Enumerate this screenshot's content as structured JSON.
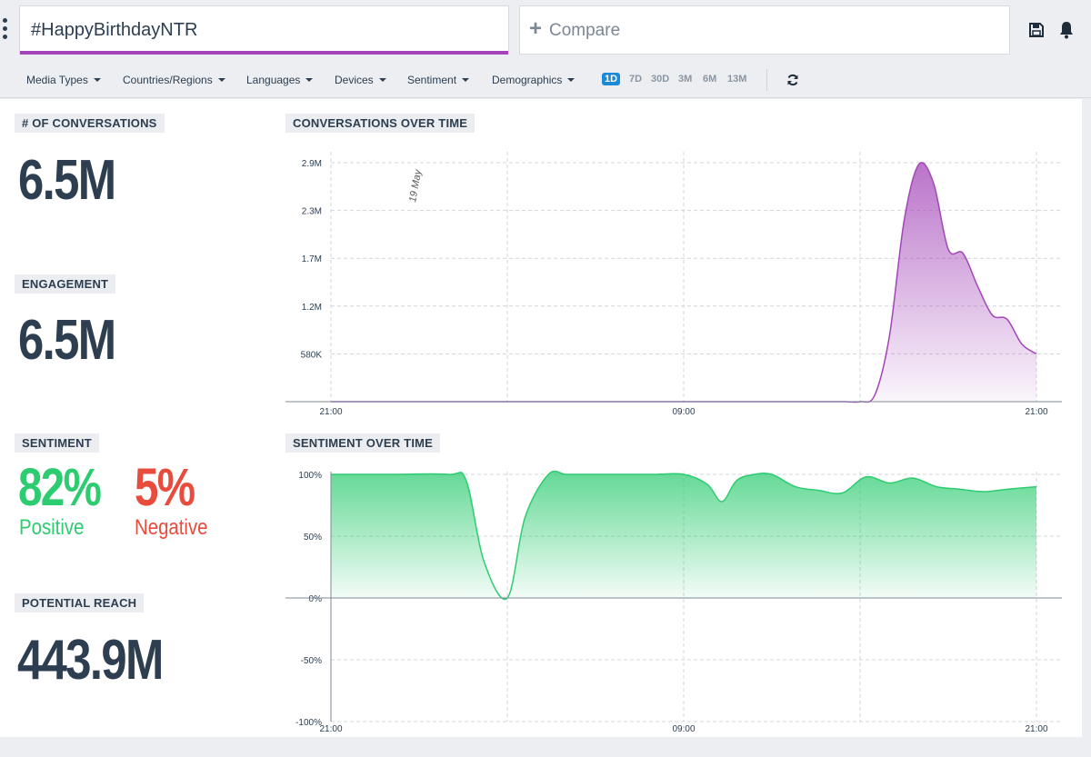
{
  "search": {
    "query": "#HappyBirthdayNTR"
  },
  "compare": {
    "label": "Compare"
  },
  "filters": [
    "Media Types",
    "Countries/Regions",
    "Languages",
    "Devices",
    "Sentiment",
    "Demographics"
  ],
  "ranges": [
    {
      "label": "1D",
      "active": true
    },
    {
      "label": "7D",
      "active": false
    },
    {
      "label": "30D",
      "active": false
    },
    {
      "label": "3M",
      "active": false
    },
    {
      "label": "6M",
      "active": false
    },
    {
      "label": "13M",
      "active": false
    }
  ],
  "metrics": {
    "conversations": {
      "label": "# OF CONVERSATIONS",
      "value": "6.5M"
    },
    "engagement": {
      "label": "ENGAGEMENT",
      "value": "6.5M"
    },
    "sentiment": {
      "label": "SENTIMENT",
      "positive_value": "82%",
      "positive_label": "Positive",
      "negative_value": "5%",
      "negative_label": "Negative"
    },
    "reach": {
      "label": "POTENTIAL REACH",
      "value": "443.9M"
    }
  },
  "colors": {
    "accent_purple": "#a345b8",
    "positive": "#2ecc71",
    "negative": "#e74c3c",
    "active_range": "#1a8ad6"
  },
  "chart_data": [
    {
      "type": "area",
      "title": "CONVERSATIONS OVER TIME",
      "annotation": "19 May",
      "x_ticks": [
        "21:00",
        "09:00",
        "21:00"
      ],
      "y_ticks": [
        "580K",
        "1.2M",
        "1.7M",
        "2.3M",
        "2.9M"
      ],
      "y_tick_values": [
        580000,
        1160000,
        1740000,
        2320000,
        2900000
      ],
      "ylim": [
        0,
        2900000
      ],
      "x_hours": [
        0,
        2,
        4,
        6,
        8,
        10,
        12,
        14,
        16,
        16.5,
        17,
        17.5,
        18,
        18.5,
        19,
        19.5,
        20,
        20.5,
        21,
        21.5,
        22,
        22.5,
        23,
        23.5,
        24
      ],
      "values": [
        0,
        0,
        0,
        0,
        0,
        0,
        0,
        0,
        0,
        0,
        0,
        0,
        0,
        80000,
        800000,
        2200000,
        2880000,
        2650000,
        1850000,
        1800000,
        1400000,
        1050000,
        1000000,
        700000,
        580000
      ],
      "color": "#a345b8",
      "grid": true
    },
    {
      "type": "area",
      "title": "SENTIMENT OVER TIME",
      "x_ticks": [
        "21:00",
        "09:00",
        "21:00"
      ],
      "y_ticks": [
        "100%",
        "50%",
        "0%",
        "-50%",
        "-100%"
      ],
      "y_tick_values": [
        100,
        50,
        0,
        -50,
        -100
      ],
      "ylim": [
        -100,
        100
      ],
      "x_hours": [
        0,
        2,
        4,
        4.6,
        5.2,
        6,
        6.6,
        7.4,
        8,
        8.8,
        10,
        11,
        12,
        12.8,
        13.3,
        13.8,
        14.4,
        15,
        15.8,
        16.6,
        17.4,
        18.2,
        19,
        19.8,
        20.6,
        21.4,
        22.2,
        23,
        24
      ],
      "values": [
        100,
        100,
        100,
        95,
        30,
        0,
        65,
        100,
        100,
        100,
        100,
        100,
        100,
        92,
        78,
        95,
        100,
        100,
        90,
        87,
        85,
        98,
        93,
        97,
        90,
        88,
        86,
        88,
        90
      ],
      "color": "#2ecc71",
      "grid": true
    }
  ]
}
